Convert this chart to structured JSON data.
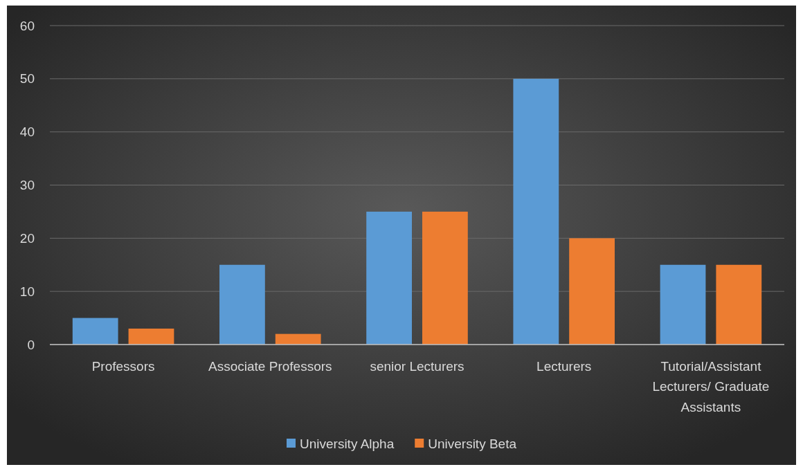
{
  "chart_data": {
    "type": "bar",
    "categories": [
      "Professors",
      "Associate Professors",
      "senior Lecturers",
      "Lecturers",
      "Tutorial/Assistant Lecturers/ Graduate Assistants"
    ],
    "series": [
      {
        "name": "University Alpha",
        "color": "#5b9bd5",
        "values": [
          5,
          15,
          25,
          50,
          15
        ]
      },
      {
        "name": "University Beta",
        "color": "#ed7d31",
        "values": [
          3,
          2,
          25,
          20,
          15
        ]
      }
    ],
    "ylim": [
      0,
      60
    ],
    "yticks": [
      0,
      10,
      20,
      30,
      40,
      50,
      60
    ],
    "grid": "y",
    "legend": "bottom"
  }
}
